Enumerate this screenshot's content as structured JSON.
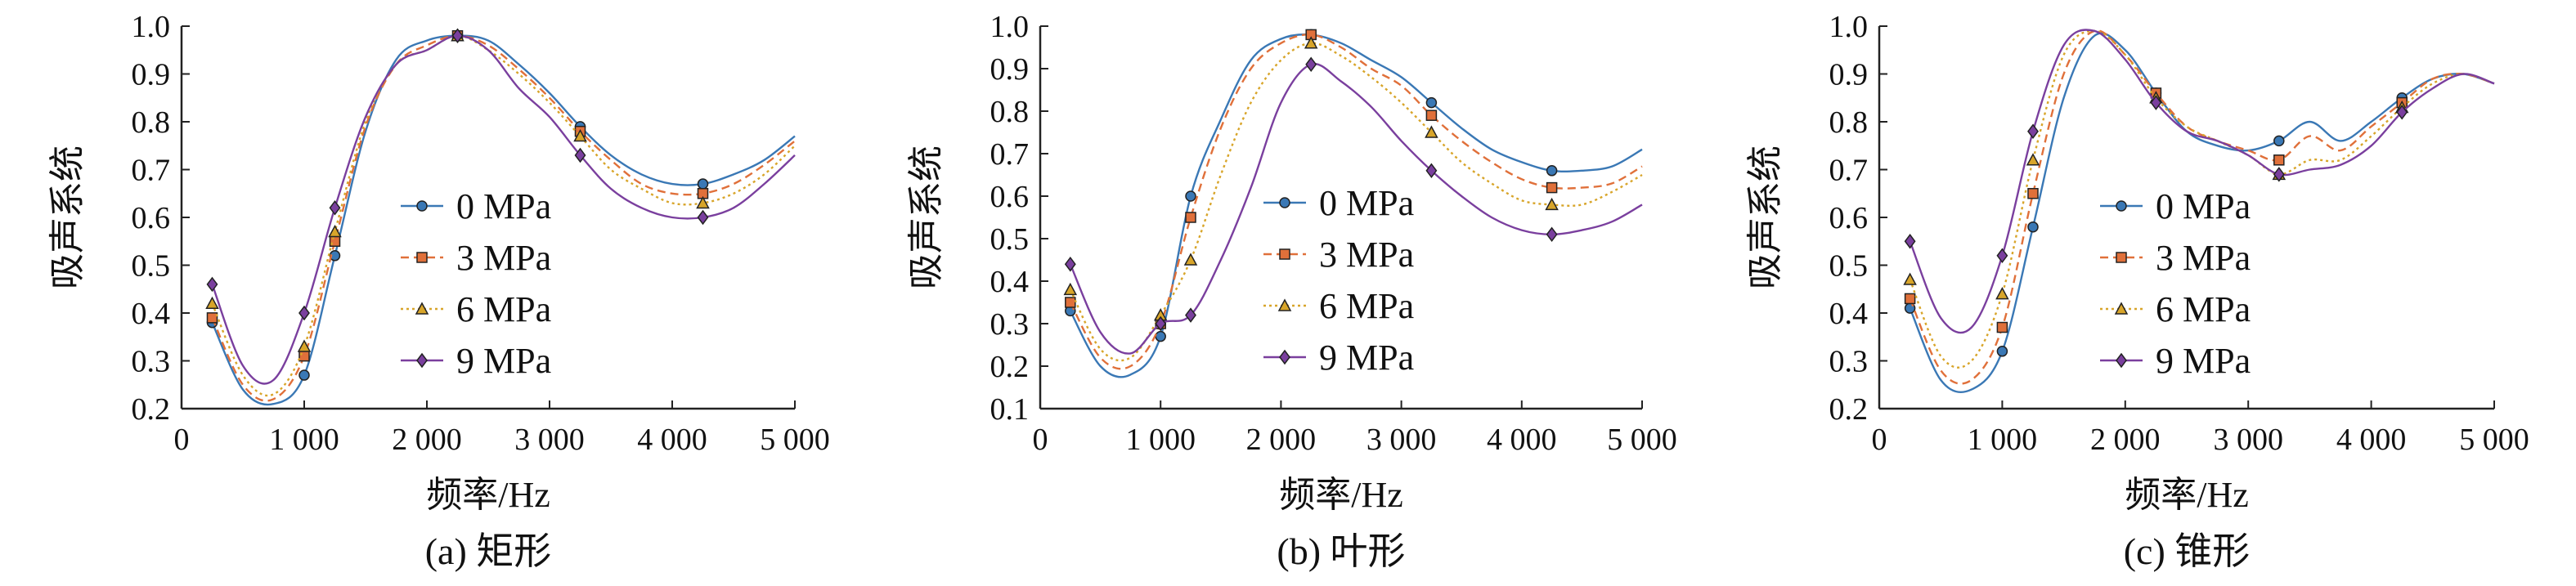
{
  "figure_captions": [
    "(a) 矩形",
    "(b) 叶形",
    "(c) 锥形"
  ],
  "chart_data": [
    {
      "type": "line",
      "title": "(a) 矩形",
      "xlabel": "频率/Hz",
      "ylabel": "吸声系统",
      "xlim": [
        0,
        5000
      ],
      "ylim": [
        0.2,
        1.0
      ],
      "xticks": [
        "0",
        "1 000",
        "2 000",
        "3 000",
        "4 000",
        "5 000"
      ],
      "yticks": [
        "0.2",
        "0.3",
        "0.4",
        "0.5",
        "0.6",
        "0.7",
        "0.8",
        "0.9",
        "1.0"
      ],
      "legend_position": "center-left",
      "x": [
        250,
        500,
        750,
        1000,
        1250,
        1500,
        1750,
        2000,
        2250,
        2500,
        2750,
        3000,
        3250,
        3500,
        3750,
        4000,
        4250,
        4500,
        4750,
        5000
      ],
      "series": [
        {
          "name": "0 MPa",
          "color": "#3a78b5",
          "marker": "circle",
          "values": [
            0.38,
            0.24,
            0.21,
            0.27,
            0.52,
            0.78,
            0.93,
            0.97,
            0.98,
            0.97,
            0.92,
            0.86,
            0.79,
            0.73,
            0.69,
            0.67,
            0.67,
            0.69,
            0.72,
            0.77
          ]
        },
        {
          "name": "3 MPa",
          "color": "#e0703a",
          "marker": "square",
          "values": [
            0.39,
            0.25,
            0.22,
            0.31,
            0.55,
            0.79,
            0.92,
            0.96,
            0.98,
            0.96,
            0.91,
            0.85,
            0.78,
            0.72,
            0.67,
            0.65,
            0.65,
            0.67,
            0.71,
            0.76
          ]
        },
        {
          "name": "6 MPa",
          "color": "#d8a52a",
          "marker": "triangle",
          "values": [
            0.42,
            0.27,
            0.23,
            0.33,
            0.57,
            0.8,
            0.92,
            0.95,
            0.98,
            0.95,
            0.9,
            0.84,
            0.77,
            0.7,
            0.66,
            0.63,
            0.63,
            0.65,
            0.69,
            0.75
          ]
        },
        {
          "name": "9 MPa",
          "color": "#7a3f9e",
          "marker": "diamond",
          "values": [
            0.46,
            0.29,
            0.26,
            0.4,
            0.62,
            0.81,
            0.92,
            0.95,
            0.98,
            0.95,
            0.87,
            0.81,
            0.73,
            0.66,
            0.62,
            0.6,
            0.6,
            0.62,
            0.67,
            0.73
          ]
        }
      ]
    },
    {
      "type": "line",
      "title": "(b) 叶形",
      "xlabel": "频率/Hz",
      "ylabel": "吸声系统",
      "xlim": [
        0,
        5000
      ],
      "ylim": [
        0.1,
        1.0
      ],
      "xticks": [
        "0",
        "1 000",
        "2 000",
        "3 000",
        "4 000",
        "5 000"
      ],
      "yticks": [
        "0.1",
        "0.2",
        "0.3",
        "0.4",
        "0.5",
        "0.6",
        "0.7",
        "0.8",
        "0.9",
        "1.0"
      ],
      "legend_position": "center-right",
      "x": [
        250,
        500,
        750,
        1000,
        1250,
        1500,
        1750,
        2000,
        2250,
        2500,
        2750,
        3000,
        3250,
        3500,
        3750,
        4000,
        4250,
        4500,
        4750,
        5000
      ],
      "series": [
        {
          "name": "0 MPa",
          "color": "#3a78b5",
          "marker": "circle",
          "values": [
            0.33,
            0.2,
            0.18,
            0.27,
            0.6,
            0.78,
            0.92,
            0.97,
            0.98,
            0.96,
            0.92,
            0.88,
            0.82,
            0.76,
            0.71,
            0.68,
            0.66,
            0.66,
            0.67,
            0.71
          ]
        },
        {
          "name": "3 MPa",
          "color": "#e0703a",
          "marker": "square",
          "values": [
            0.35,
            0.22,
            0.2,
            0.3,
            0.55,
            0.76,
            0.9,
            0.96,
            0.98,
            0.95,
            0.9,
            0.86,
            0.79,
            0.73,
            0.68,
            0.64,
            0.62,
            0.62,
            0.63,
            0.67
          ]
        },
        {
          "name": "6 MPa",
          "color": "#d8a52a",
          "marker": "triangle",
          "values": [
            0.38,
            0.24,
            0.22,
            0.32,
            0.45,
            0.65,
            0.82,
            0.92,
            0.96,
            0.93,
            0.88,
            0.82,
            0.75,
            0.68,
            0.63,
            0.59,
            0.58,
            0.58,
            0.61,
            0.65
          ]
        },
        {
          "name": "9 MPa",
          "color": "#7a3f9e",
          "marker": "diamond",
          "values": [
            0.44,
            0.28,
            0.23,
            0.3,
            0.32,
            0.45,
            0.62,
            0.82,
            0.91,
            0.87,
            0.81,
            0.73,
            0.66,
            0.6,
            0.55,
            0.52,
            0.51,
            0.52,
            0.54,
            0.58
          ]
        }
      ]
    },
    {
      "type": "line",
      "title": "(c) 锥形",
      "xlabel": "频率/Hz",
      "ylabel": "吸声系统",
      "xlim": [
        0,
        5000
      ],
      "ylim": [
        0.2,
        1.0
      ],
      "xticks": [
        "0",
        "1 000",
        "2 000",
        "3 000",
        "4 000",
        "5 000"
      ],
      "yticks": [
        "0.2",
        "0.3",
        "0.4",
        "0.5",
        "0.6",
        "0.7",
        "0.8",
        "0.9",
        "1.0"
      ],
      "legend_position": "center-right",
      "x": [
        250,
        500,
        750,
        1000,
        1250,
        1500,
        1750,
        2000,
        2250,
        2500,
        2750,
        3000,
        3250,
        3500,
        3750,
        4000,
        4250,
        4500,
        4750,
        5000
      ],
      "series": [
        {
          "name": "0 MPa",
          "color": "#3a78b5",
          "marker": "circle",
          "values": [
            0.41,
            0.26,
            0.24,
            0.32,
            0.58,
            0.85,
            0.98,
            0.95,
            0.86,
            0.78,
            0.75,
            0.74,
            0.76,
            0.8,
            0.76,
            0.8,
            0.85,
            0.89,
            0.9,
            0.88
          ]
        },
        {
          "name": "3 MPa",
          "color": "#e0703a",
          "marker": "square",
          "values": [
            0.43,
            0.28,
            0.26,
            0.37,
            0.65,
            0.9,
            0.99,
            0.94,
            0.86,
            0.79,
            0.76,
            0.74,
            0.72,
            0.77,
            0.74,
            0.79,
            0.84,
            0.89,
            0.9,
            0.88
          ]
        },
        {
          "name": "6 MPa",
          "color": "#d8a52a",
          "marker": "triangle",
          "values": [
            0.47,
            0.31,
            0.3,
            0.44,
            0.72,
            0.94,
            0.99,
            0.94,
            0.85,
            0.79,
            0.76,
            0.73,
            0.69,
            0.72,
            0.72,
            0.77,
            0.83,
            0.88,
            0.9,
            0.88
          ]
        },
        {
          "name": "9 MPa",
          "color": "#7a3f9e",
          "marker": "diamond",
          "values": [
            0.55,
            0.39,
            0.37,
            0.52,
            0.78,
            0.96,
            0.99,
            0.93,
            0.84,
            0.78,
            0.76,
            0.73,
            0.69,
            0.7,
            0.71,
            0.75,
            0.82,
            0.87,
            0.9,
            0.88
          ]
        }
      ]
    }
  ]
}
